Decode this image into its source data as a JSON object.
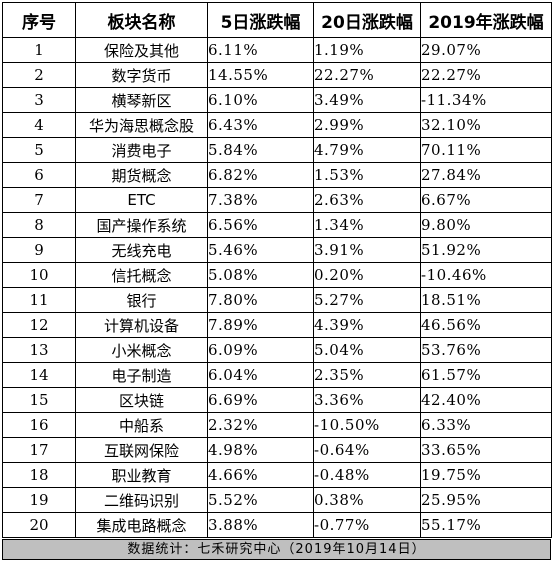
{
  "table": {
    "headers": [
      "序号",
      "板块名称",
      "5日涨跌幅",
      "20日涨跌幅",
      "2019年涨跌幅"
    ],
    "rows": [
      [
        "1",
        "保险及其他",
        "6.11%",
        "1.19%",
        "29.07%"
      ],
      [
        "2",
        "数字货币",
        "14.55%",
        "22.27%",
        "22.27%"
      ],
      [
        "3",
        "横琴新区",
        "6.10%",
        "3.49%",
        "-11.34%"
      ],
      [
        "4",
        "华为海思概念股",
        "6.43%",
        "2.99%",
        "32.10%"
      ],
      [
        "5",
        "消费电子",
        "5.84%",
        "4.79%",
        "70.11%"
      ],
      [
        "6",
        "期货概念",
        "6.82%",
        "1.53%",
        "27.84%"
      ],
      [
        "7",
        "ETC",
        "7.38%",
        "2.63%",
        "6.67%"
      ],
      [
        "8",
        "国产操作系统",
        "6.56%",
        "1.34%",
        "9.80%"
      ],
      [
        "9",
        "无线充电",
        "5.46%",
        "3.91%",
        "51.92%"
      ],
      [
        "10",
        "信托概念",
        "5.08%",
        "0.20%",
        "-10.46%"
      ],
      [
        "11",
        "银行",
        "7.80%",
        "5.27%",
        "18.51%"
      ],
      [
        "12",
        "计算机设备",
        "7.89%",
        "4.39%",
        "46.56%"
      ],
      [
        "13",
        "小米概念",
        "6.09%",
        "5.04%",
        "53.76%"
      ],
      [
        "14",
        "电子制造",
        "6.04%",
        "2.35%",
        "61.57%"
      ],
      [
        "15",
        "区块链",
        "6.69%",
        "3.36%",
        "42.40%"
      ],
      [
        "16",
        "中船系",
        "2.32%",
        "-10.50%",
        "6.33%"
      ],
      [
        "17",
        "互联网保险",
        "4.98%",
        "-0.64%",
        "33.65%"
      ],
      [
        "18",
        "职业教育",
        "4.66%",
        "-0.48%",
        "19.75%"
      ],
      [
        "19",
        "二维码识别",
        "5.52%",
        "0.38%",
        "25.95%"
      ],
      [
        "20",
        "集成电路概念",
        "3.88%",
        "-0.77%",
        "55.17%"
      ]
    ]
  },
  "footer": "数据统计：七禾研究中心（2019年10月14日）"
}
